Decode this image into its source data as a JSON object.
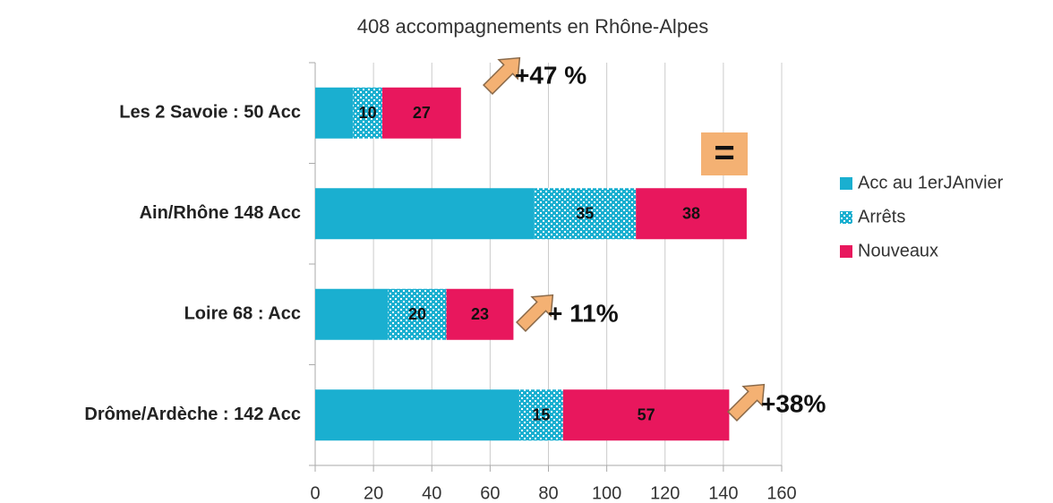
{
  "chart_data": {
    "type": "stacked_barh",
    "title": "408 accompagnements en Rhône-Alpes",
    "categories": [
      "Les 2 Savoie : 50 Acc",
      "Ain/Rhône  148 Acc",
      "Loire 68 : Acc",
      "Drôme/Ardèche : 142 Acc"
    ],
    "series": [
      {
        "name": "Acc au 1erJAnvier",
        "color": "#1aafd0",
        "pattern": false,
        "show_labels": false,
        "values": [
          13,
          75,
          25,
          70
        ]
      },
      {
        "name": "Arrêts",
        "color": "#1aafd0",
        "pattern": true,
        "show_labels": true,
        "values": [
          10,
          35,
          20,
          15
        ]
      },
      {
        "name": "Nouveaux",
        "color": "#e8175d",
        "pattern": false,
        "show_labels": true,
        "values": [
          27,
          38,
          23,
          57
        ]
      }
    ],
    "xlim": [
      0,
      160
    ],
    "xticks": [
      0,
      20,
      40,
      60,
      80,
      100,
      120,
      140,
      160
    ],
    "grid": true,
    "legend": "right",
    "annotations": [
      "+47 %",
      "=",
      "+ 11%",
      "+38%"
    ]
  }
}
